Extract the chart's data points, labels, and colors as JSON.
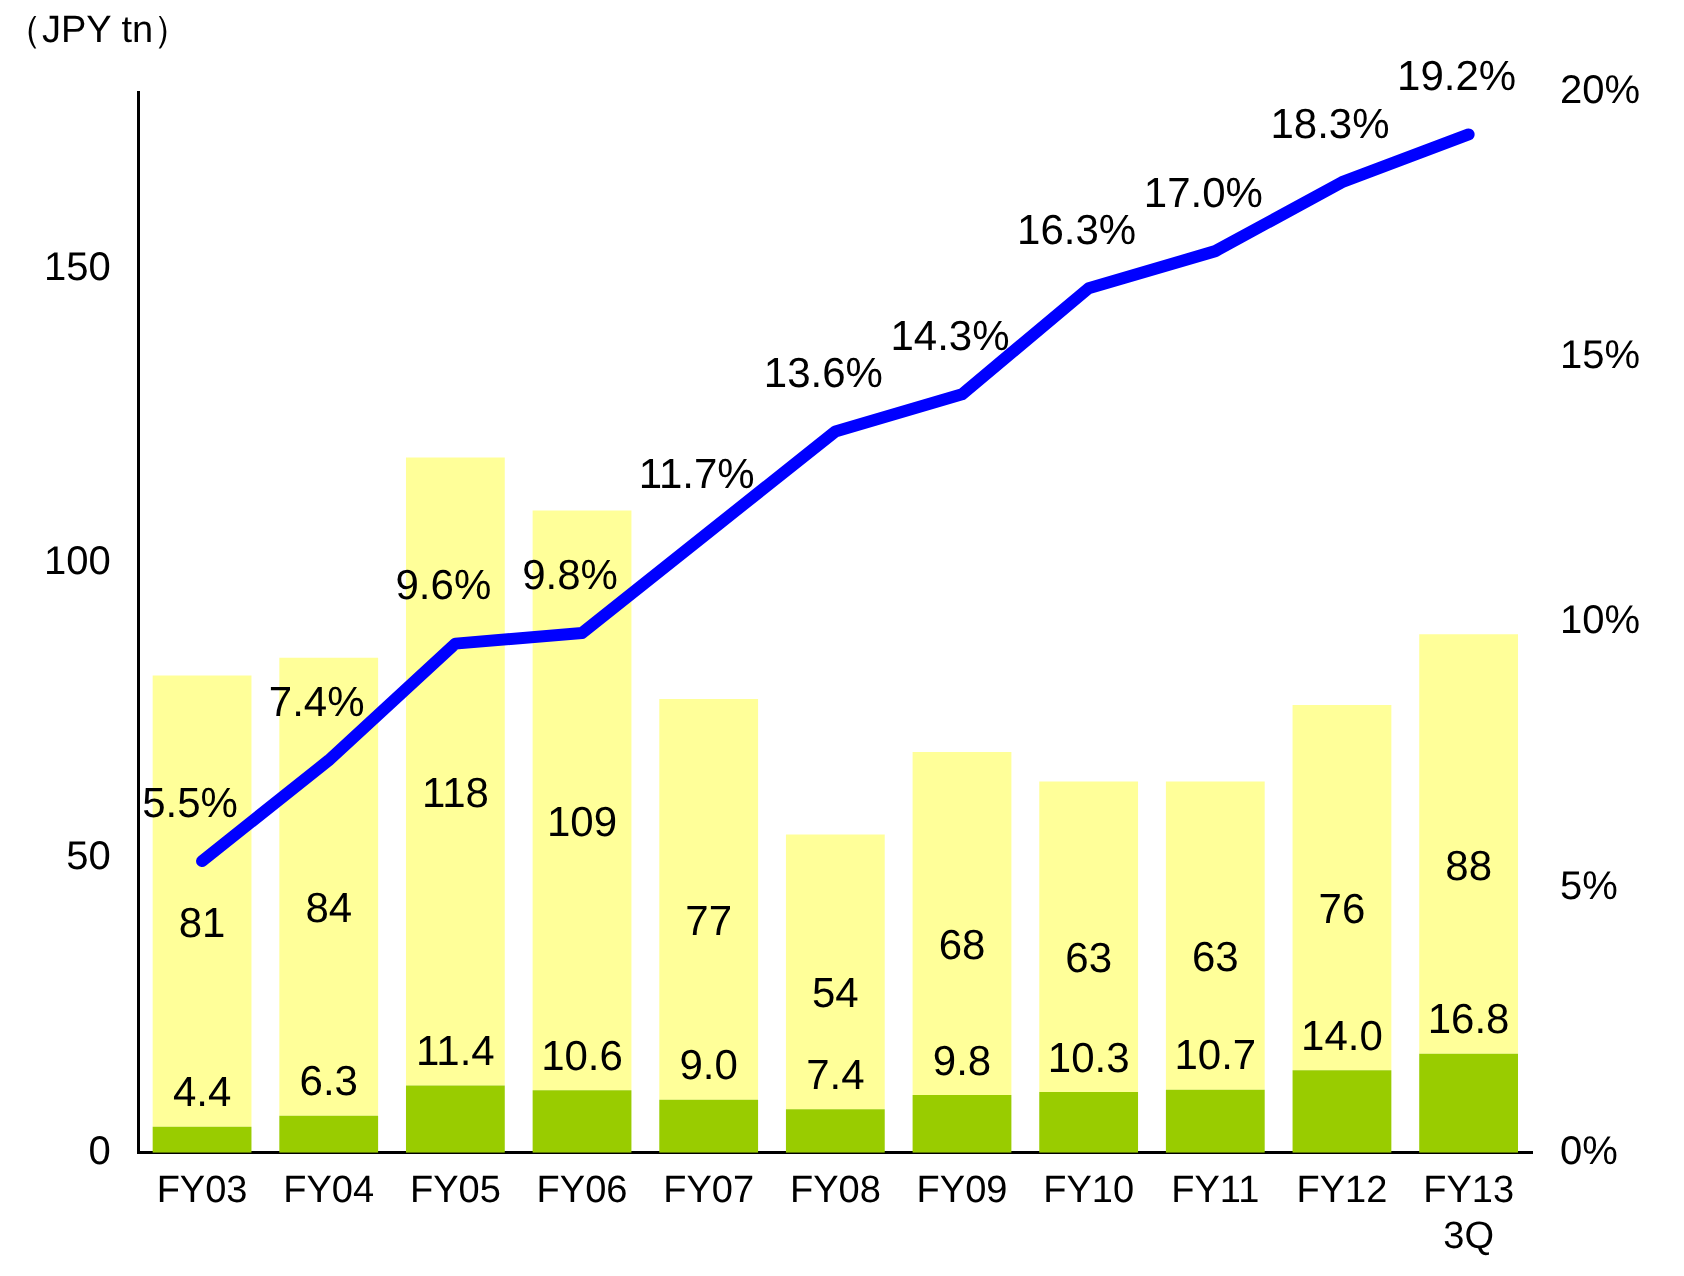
{
  "chart_data": {
    "type": "bar",
    "ylabel": "（JPY tn）",
    "categories": [
      "FY03",
      "FY04",
      "FY05",
      "FY06",
      "FY07",
      "FY08",
      "FY09",
      "FY10",
      "FY11",
      "FY12",
      "FY13 3Q"
    ],
    "series": [
      {
        "color": "#99cc00",
        "values": [
          4.4,
          6.3,
          11.4,
          10.6,
          9.0,
          7.4,
          9.8,
          10.3,
          10.7,
          14.0,
          16.8
        ],
        "value_labels": [
          "4.4",
          "6.3",
          "11.4",
          "10.6",
          "9.0",
          "7.4",
          "9.8",
          "10.3",
          "10.7",
          "14.0",
          "16.8"
        ]
      },
      {
        "color": "#ffff99",
        "values": [
          76.6,
          77.7,
          106.6,
          98.4,
          68.0,
          46.6,
          58.2,
          52.7,
          52.3,
          62.0,
          71.2
        ]
      },
      {
        "type": "line",
        "axis": "y2",
        "color": "#0000ff",
        "values": [
          5.5,
          7.4,
          9.6,
          9.8,
          11.7,
          13.6,
          14.3,
          16.3,
          17.0,
          18.3,
          19.2
        ],
        "value_labels": [
          "5.5%",
          "7.4%",
          "9.6%",
          "9.8%",
          "11.7%",
          "13.6%",
          "14.3%",
          "16.3%",
          "17.0%",
          "18.3%",
          "19.2%"
        ]
      }
    ],
    "stacked": true,
    "totals": [
      "81",
      "84",
      "118",
      "109",
      "77",
      "54",
      "68",
      "63",
      "63",
      "76",
      "88"
    ],
    "ylim": [
      0,
      180
    ],
    "yticks": [
      0,
      50,
      100,
      150
    ],
    "y2lim": [
      0,
      20
    ],
    "y2ticks": [
      {
        "value": 0,
        "label": "0%"
      },
      {
        "value": 5,
        "label": "5%"
      },
      {
        "value": 10,
        "label": "10%"
      },
      {
        "value": 15,
        "label": "15%"
      },
      {
        "value": 20,
        "label": "20%"
      }
    ],
    "grid": false,
    "legend": false,
    "marker": "none",
    "line_style": "solid"
  }
}
